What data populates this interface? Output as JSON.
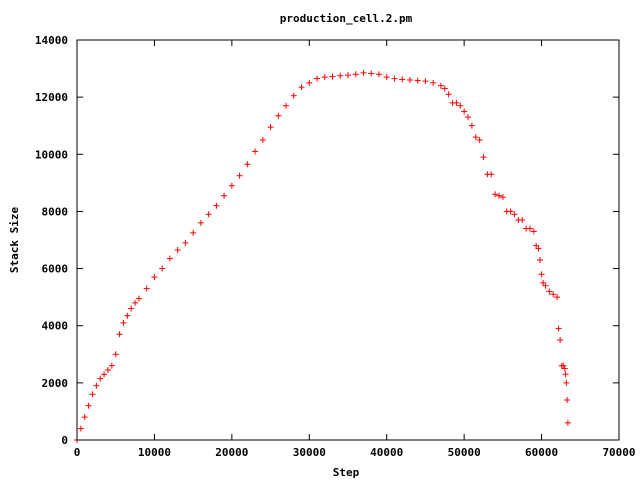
{
  "chart_data": {
    "type": "scatter",
    "title": "production_cell.2.pm",
    "xlabel": "Step",
    "ylabel": "Stack Size",
    "xlim": [
      0,
      70000
    ],
    "ylim": [
      0,
      14000
    ],
    "x_ticks": [
      0,
      10000,
      20000,
      30000,
      40000,
      50000,
      60000,
      70000
    ],
    "y_ticks": [
      0,
      2000,
      4000,
      6000,
      8000,
      10000,
      12000,
      14000
    ],
    "x_tick_labels": [
      "0",
      "10000",
      "20000",
      "30000",
      "40000",
      "50000",
      "60000",
      "70000"
    ],
    "y_tick_labels": [
      "0",
      "2000",
      "4000",
      "6000",
      "8000",
      "10000",
      "12000",
      "14000"
    ],
    "grid": false,
    "marker": "plus",
    "marker_color": "#ff0000",
    "series": [
      {
        "x": [
          0,
          500,
          1000,
          1500,
          2000,
          2500,
          3000,
          3500,
          4000,
          4500,
          5000,
          5500,
          6000,
          6500,
          7000,
          7500,
          8000,
          9000,
          10000,
          11000,
          12000,
          13000,
          14000,
          15000,
          16000,
          17000,
          18000,
          19000,
          20000,
          21000,
          22000,
          23000,
          24000,
          25000,
          26000,
          27000,
          28000,
          29000,
          30000,
          31000,
          32000,
          33000,
          34000,
          35000,
          36000,
          37000,
          38000,
          39000,
          40000,
          41000,
          42000,
          43000,
          44000,
          45000,
          46000,
          47000,
          47500,
          48000,
          48500,
          49000,
          49500,
          50000,
          50500,
          51000,
          51500,
          52000,
          52500,
          53000,
          53500,
          54000,
          54500,
          55000,
          55500,
          56000,
          56500,
          57000,
          57500,
          58000,
          58500,
          59000,
          59300,
          59600,
          59800,
          60000,
          60200,
          60500,
          61000,
          61500,
          62000,
          62200,
          62400,
          62600,
          62800,
          63000,
          63100,
          63200,
          63300,
          63400
        ],
        "y": [
          0,
          400,
          800,
          1200,
          1600,
          1900,
          2150,
          2300,
          2450,
          2600,
          3000,
          3700,
          4100,
          4350,
          4600,
          4800,
          4950,
          5300,
          5700,
          6000,
          6350,
          6650,
          6900,
          7250,
          7600,
          7900,
          8200,
          8550,
          8900,
          9250,
          9650,
          10100,
          10500,
          10950,
          11350,
          11700,
          12050,
          12350,
          12500,
          12650,
          12700,
          12720,
          12750,
          12770,
          12800,
          12850,
          12830,
          12800,
          12700,
          12650,
          12620,
          12600,
          12580,
          12560,
          12500,
          12400,
          12300,
          12100,
          11800,
          11800,
          11700,
          11500,
          11300,
          11000,
          10600,
          10500,
          9900,
          9300,
          9300,
          8600,
          8550,
          8500,
          8000,
          8000,
          7900,
          7700,
          7700,
          7400,
          7400,
          7300,
          6800,
          6700,
          6300,
          5800,
          5500,
          5400,
          5200,
          5100,
          5000,
          3900,
          3500,
          2600,
          2600,
          2500,
          2300,
          2000,
          1400,
          600
        ]
      }
    ]
  }
}
